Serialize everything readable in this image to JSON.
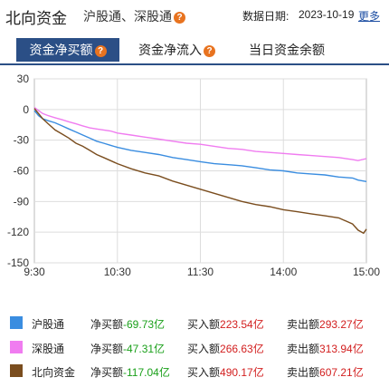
{
  "header": {
    "title": "北向资金",
    "subtitle": "沪股通、深股通",
    "date_label": "数据日期:",
    "date_value": "2023-10-19",
    "more_label": "更多"
  },
  "tabs": [
    {
      "label": "资金净买额",
      "active": true,
      "has_help": true
    },
    {
      "label": "资金净流入",
      "active": false,
      "has_help": true
    },
    {
      "label": "当日资金余额",
      "active": false,
      "has_help": false
    }
  ],
  "colors": {
    "accent": "#2b4f86",
    "help_icon": "#e8731f",
    "positive_text": "#1aa01a",
    "negative_text": "#d21e1e"
  },
  "chart_data": {
    "type": "line",
    "x_ticks": [
      "9:30",
      "10:30",
      "11:30",
      "14:00",
      "15:00"
    ],
    "y_ticks": [
      30,
      0,
      -30,
      -60,
      -90,
      -120,
      -150
    ],
    "ylim": [
      -150,
      30
    ],
    "grid": true,
    "series": [
      {
        "name": "沪股通",
        "color": "#3a8de0",
        "points": [
          [
            0,
            -1
          ],
          [
            3,
            -6
          ],
          [
            6,
            -9
          ],
          [
            10,
            -11
          ],
          [
            15,
            -13
          ],
          [
            20,
            -16
          ],
          [
            25,
            -19
          ],
          [
            30,
            -22
          ],
          [
            35,
            -25
          ],
          [
            40,
            -28
          ],
          [
            45,
            -31
          ],
          [
            50,
            -33
          ],
          [
            55,
            -35
          ],
          [
            60,
            -37
          ],
          [
            70,
            -40
          ],
          [
            80,
            -42
          ],
          [
            90,
            -44
          ],
          [
            100,
            -47
          ],
          [
            110,
            -49
          ],
          [
            120,
            -51
          ],
          [
            130,
            -53
          ],
          [
            140,
            -54
          ],
          [
            150,
            -55
          ],
          [
            160,
            -57
          ],
          [
            170,
            -59
          ],
          [
            180,
            -60
          ],
          [
            190,
            -62
          ],
          [
            200,
            -63
          ],
          [
            210,
            -64
          ],
          [
            220,
            -66
          ],
          [
            230,
            -67
          ],
          [
            234,
            -69
          ],
          [
            240,
            -70.5
          ]
        ]
      },
      {
        "name": "深股通",
        "color": "#f07cf0",
        "points": [
          [
            0,
            2
          ],
          [
            3,
            -1
          ],
          [
            6,
            -4
          ],
          [
            10,
            -6
          ],
          [
            15,
            -8
          ],
          [
            20,
            -10
          ],
          [
            25,
            -12
          ],
          [
            30,
            -14
          ],
          [
            35,
            -16
          ],
          [
            40,
            -18
          ],
          [
            45,
            -19
          ],
          [
            50,
            -20
          ],
          [
            55,
            -21
          ],
          [
            60,
            -23
          ],
          [
            70,
            -25
          ],
          [
            80,
            -27
          ],
          [
            90,
            -29
          ],
          [
            100,
            -31
          ],
          [
            110,
            -33
          ],
          [
            120,
            -34
          ],
          [
            130,
            -36
          ],
          [
            140,
            -38
          ],
          [
            150,
            -39
          ],
          [
            160,
            -41
          ],
          [
            170,
            -42
          ],
          [
            180,
            -43
          ],
          [
            190,
            -44
          ],
          [
            200,
            -45
          ],
          [
            210,
            -46
          ],
          [
            220,
            -47
          ],
          [
            230,
            -49
          ],
          [
            234,
            -50
          ],
          [
            240,
            -48
          ]
        ]
      },
      {
        "name": "北向资金",
        "color": "#7a4d1e",
        "points": [
          [
            0,
            1
          ],
          [
            3,
            -4
          ],
          [
            6,
            -9
          ],
          [
            10,
            -14
          ],
          [
            15,
            -20
          ],
          [
            20,
            -24
          ],
          [
            25,
            -28
          ],
          [
            30,
            -33
          ],
          [
            35,
            -36
          ],
          [
            40,
            -40
          ],
          [
            45,
            -44
          ],
          [
            50,
            -47
          ],
          [
            55,
            -50
          ],
          [
            60,
            -53
          ],
          [
            70,
            -58
          ],
          [
            80,
            -62
          ],
          [
            90,
            -65
          ],
          [
            100,
            -70
          ],
          [
            110,
            -74
          ],
          [
            120,
            -78
          ],
          [
            130,
            -82
          ],
          [
            140,
            -86
          ],
          [
            150,
            -90
          ],
          [
            160,
            -93
          ],
          [
            170,
            -95
          ],
          [
            180,
            -98
          ],
          [
            190,
            -100
          ],
          [
            200,
            -102
          ],
          [
            210,
            -104
          ],
          [
            220,
            -106
          ],
          [
            230,
            -112
          ],
          [
            234,
            -118
          ],
          [
            238,
            -121
          ],
          [
            240,
            -117
          ]
        ]
      }
    ]
  },
  "legend": [
    {
      "name": "沪股通",
      "color": "#3a8de0",
      "net_label": "净买额",
      "net_value": "-69.73亿",
      "buy_label": "买入额",
      "buy_value": "223.54亿",
      "sell_label": "卖出额",
      "sell_value": "293.27亿"
    },
    {
      "name": "深股通",
      "color": "#f07cf0",
      "net_label": "净买额",
      "net_value": "-47.31亿",
      "buy_label": "买入额",
      "buy_value": "266.63亿",
      "sell_label": "卖出额",
      "sell_value": "313.94亿"
    },
    {
      "name": "北向资金",
      "color": "#7a4d1e",
      "net_label": "净买额",
      "net_value": "-117.04亿",
      "buy_label": "买入额",
      "buy_value": "490.17亿",
      "sell_label": "卖出额",
      "sell_value": "607.21亿"
    }
  ]
}
